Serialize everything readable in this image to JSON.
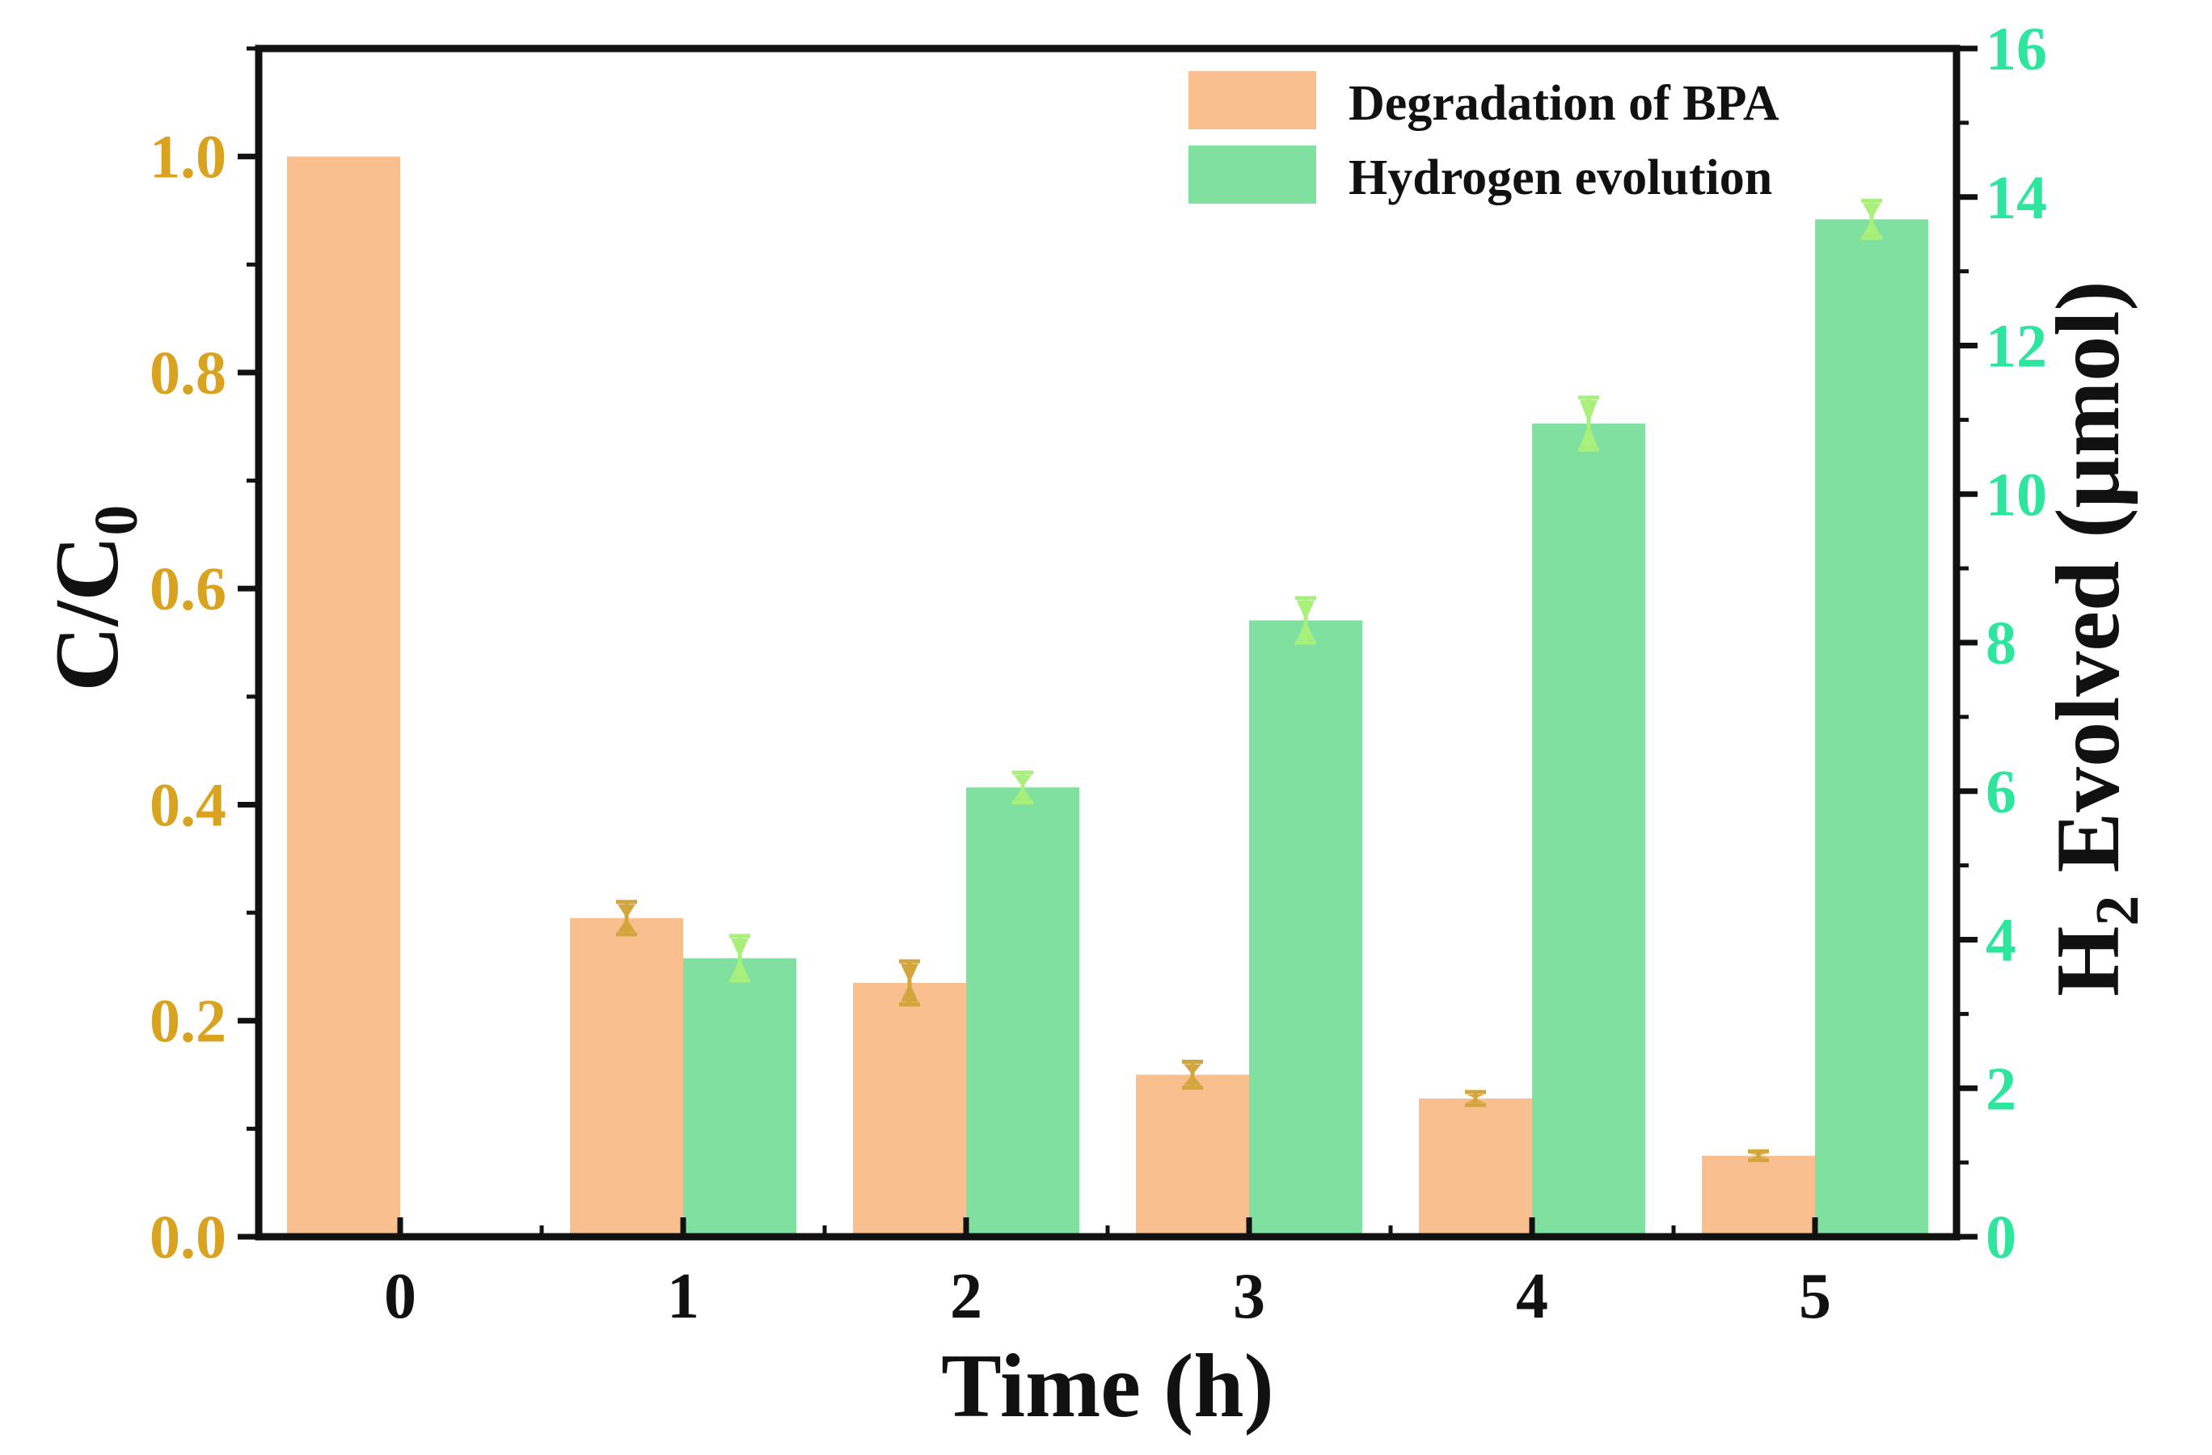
{
  "chart_data": {
    "type": "bar",
    "categories": [
      "0",
      "1",
      "2",
      "3",
      "4",
      "5"
    ],
    "xlabel": "Time (h)",
    "ylabel": {
      "main": "C/C",
      "sub": "0"
    },
    "y2label": {
      "prefix": "H",
      "sub": "2",
      "rest": " Evolved  (μmol)"
    },
    "ylim": [
      0,
      1.1
    ],
    "y2lim": [
      0,
      16
    ],
    "yticks": [
      "0.0",
      "0.2",
      "0.4",
      "0.6",
      "0.8",
      "1.0"
    ],
    "y2ticks": [
      "0",
      "2",
      "4",
      "6",
      "8",
      "10",
      "12",
      "14",
      "16"
    ],
    "series": [
      {
        "name": "Degradation of BPA",
        "axis": "left",
        "color": "#F9BF8F",
        "values": [
          1.0,
          0.295,
          0.235,
          0.15,
          0.128,
          0.075
        ],
        "errors": [
          0,
          0.015,
          0.02,
          0.012,
          0.006,
          0.004
        ]
      },
      {
        "name": "Hydrogen evolution",
        "axis": "right",
        "color": "#80E0A0",
        "values": [
          null,
          3.75,
          6.05,
          8.3,
          10.95,
          13.7
        ],
        "errors": [
          0,
          0.3,
          0.2,
          0.3,
          0.35,
          0.25
        ]
      }
    ],
    "colors": {
      "left_axis": "#D9A320",
      "right_axis": "#2EE59D",
      "error_left": "#D2A63C",
      "error_right": "#A8F07A",
      "frame": "#111111"
    },
    "legend": "top-right"
  }
}
